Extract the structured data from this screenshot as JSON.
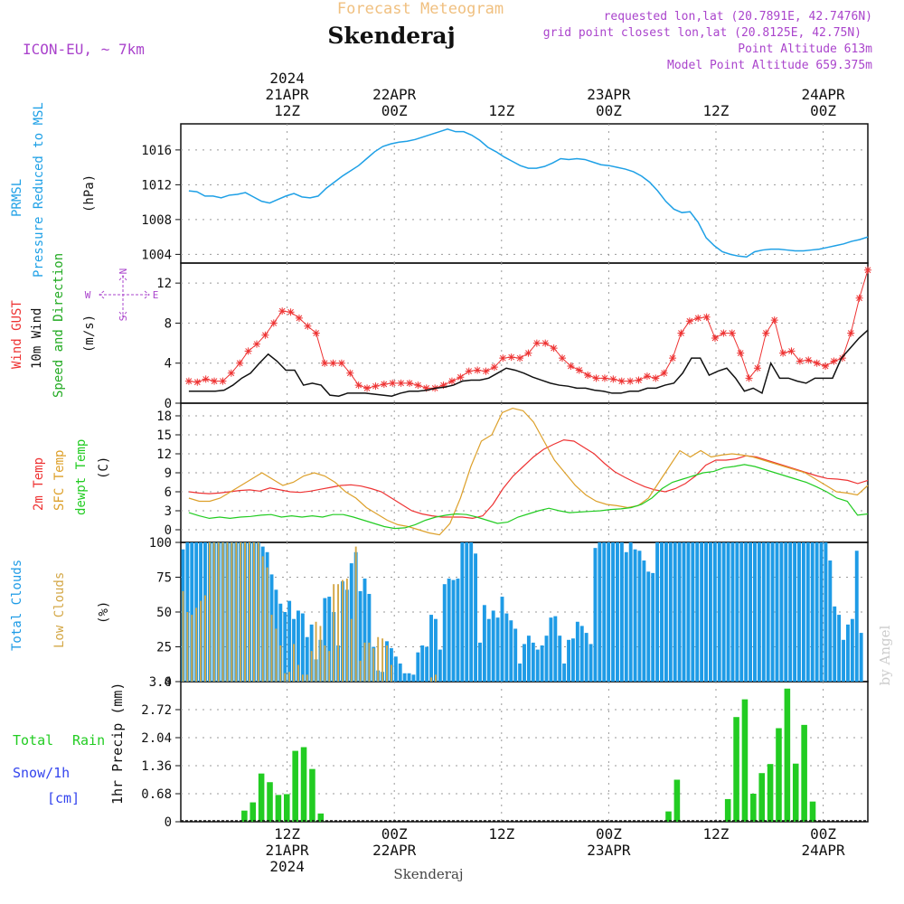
{
  "header": {
    "product_title": "Forecast Meteogram",
    "location": "Skenderaj",
    "model": "ICON-EU, ~ 7km",
    "requested": "requested lon,lat (20.7891E, 42.7476N)",
    "grid_point": "grid point closest lon,lat (20.8125E, 42.75N)",
    "point_altitude": "Point Altitude 613m",
    "model_altitude": "Model Point Altitude 659.375m",
    "watermark": "by Angel",
    "footer_location": "Skenderaj"
  },
  "colors": {
    "pressure": "#1ea0e6",
    "gust": "#ee3333",
    "wind": "#111111",
    "direction": "#22aa22",
    "compass": "#aa44cc",
    "temp2m": "#ee3333",
    "sfc_temp": "#dda02a",
    "dewpoint": "#22cc22",
    "total_clouds": "#1e9be6",
    "low_clouds": "#d4a848",
    "rain": "#22cc22",
    "snow": "#3344ee",
    "title_orange": "#f0c080",
    "purple": "#aa44cc",
    "grid": "#999999"
  },
  "time_axis": {
    "top_labels": [
      {
        "h": 12,
        "lines": [
          "2024",
          "21APR",
          "12Z"
        ]
      },
      {
        "h": 24,
        "lines": [
          "22APR",
          "00Z"
        ]
      },
      {
        "h": 36,
        "lines": [
          "12Z"
        ]
      },
      {
        "h": 48,
        "lines": [
          "23APR",
          "00Z"
        ]
      },
      {
        "h": 60,
        "lines": [
          "12Z"
        ]
      },
      {
        "h": 72,
        "lines": [
          "24APR",
          "00Z"
        ]
      }
    ],
    "bottom_labels": [
      {
        "h": 12,
        "lines": [
          "12Z",
          "21APR",
          "2024"
        ]
      },
      {
        "h": 24,
        "lines": [
          "00Z",
          "22APR"
        ]
      },
      {
        "h": 36,
        "lines": [
          "12Z"
        ]
      },
      {
        "h": 48,
        "lines": [
          "00Z",
          "23APR"
        ]
      },
      {
        "h": 60,
        "lines": [
          "12Z"
        ]
      },
      {
        "h": 72,
        "lines": [
          "00Z",
          "24APR"
        ]
      }
    ]
  },
  "panel_labels": {
    "pressure": {
      "l1": "PRMSL",
      "l2": "Pressure Reduced to MSL",
      "unit": "(hPa)"
    },
    "wind": {
      "l1": "Wind GUST",
      "l2": "10m Wind",
      "l3": "Speed and Direction",
      "unit": "(m/s)"
    },
    "compass": {
      "n": "N",
      "s": "S",
      "w": "W",
      "e": "E"
    },
    "temp": {
      "l1": "2m Temp",
      "l2": "SFC Temp",
      "l3": "dewpt Temp",
      "unit": "(C)"
    },
    "clouds": {
      "l1": "Total Clouds",
      "l2": "Low Clouds",
      "unit": "(%)"
    },
    "precip": {
      "total": "Total",
      "rain": "Rain",
      "snow": "Snow/1h",
      "cm": "[cm]",
      "unit": "1hr Precip (mm)"
    }
  },
  "chart_data": [
    {
      "type": "line",
      "name": "pressure",
      "x_start": "2024-04-21 01Z",
      "x_step_hours": 1,
      "ylim": [
        1003,
        1019
      ],
      "yticks": [
        "1004",
        "1008",
        "1012",
        "1016"
      ],
      "series": [
        {
          "name": "PRMSL",
          "values": [
            1011.3,
            1011.2,
            1010.7,
            1010.7,
            1010.5,
            1010.8,
            1010.9,
            1011.1,
            1010.6,
            1010.1,
            1009.9,
            1010.3,
            1010.7,
            1011.0,
            1010.6,
            1010.5,
            1010.7,
            1011.6,
            1012.3,
            1013.0,
            1013.6,
            1014.2,
            1015.0,
            1015.8,
            1016.4,
            1016.7,
            1016.9,
            1017.0,
            1017.2,
            1017.5,
            1017.8,
            1018.1,
            1018.4,
            1018.1,
            1018.1,
            1017.7,
            1017.1,
            1016.3,
            1015.8,
            1015.2,
            1014.7,
            1014.2,
            1013.9,
            1013.9,
            1014.1,
            1014.5,
            1015.0,
            1014.9,
            1015.0,
            1014.9,
            1014.6,
            1014.3,
            1014.2,
            1014.0,
            1013.8,
            1013.5,
            1013.0,
            1012.3,
            1011.3,
            1010.1,
            1009.2,
            1008.8,
            1008.9,
            1007.7,
            1005.9,
            1005.0,
            1004.3,
            1004.0,
            1003.8,
            1003.7,
            1004.3,
            1004.5,
            1004.6,
            1004.6,
            1004.5,
            1004.4,
            1004.4,
            1004.5,
            1004.6,
            1004.8,
            1005.0,
            1005.2,
            1005.5,
            1005.7,
            1006.0
          ]
        }
      ]
    },
    {
      "type": "line",
      "name": "wind",
      "x_start": "2024-04-21 01Z",
      "x_step_hours": 1,
      "ylim": [
        0,
        14
      ],
      "yticks": [
        "0",
        "4",
        "8",
        "12"
      ],
      "series": [
        {
          "name": "Wind GUST",
          "values": [
            2.2,
            2.1,
            2.4,
            2.2,
            2.2,
            3.0,
            4.0,
            5.2,
            5.9,
            6.8,
            8.0,
            9.2,
            9.1,
            8.5,
            7.7,
            7.0,
            4.0,
            4.0,
            4.0,
            3.0,
            1.8,
            1.5,
            1.7,
            1.9,
            2.0,
            2.0,
            2.0,
            1.8,
            1.5,
            1.5,
            1.8,
            2.2,
            2.6,
            3.2,
            3.3,
            3.2,
            3.6,
            4.5,
            4.6,
            4.5,
            5.0,
            6.0,
            6.0,
            5.5,
            4.5,
            3.7,
            3.3,
            2.8,
            2.5,
            2.5,
            2.4,
            2.2,
            2.2,
            2.3,
            2.7,
            2.5,
            3.0,
            4.5,
            7.0,
            8.2,
            8.5,
            8.6,
            6.5,
            7.0,
            7.0,
            5.0,
            2.5,
            3.5,
            7.0,
            8.3,
            5.0,
            5.2,
            4.2,
            4.3,
            4.0,
            3.7,
            4.2,
            4.5,
            7.0,
            10.5,
            13.3
          ]
        },
        {
          "name": "10m Wind",
          "values": [
            1.2,
            1.2,
            1.2,
            1.2,
            1.3,
            1.8,
            2.5,
            3.0,
            4.0,
            4.9,
            4.2,
            3.3,
            3.3,
            1.8,
            2.0,
            1.8,
            0.8,
            0.7,
            1.0,
            1.0,
            1.0,
            0.9,
            0.8,
            0.7,
            1.0,
            1.2,
            1.2,
            1.3,
            1.5,
            1.6,
            1.8,
            2.2,
            2.3,
            2.3,
            2.5,
            3.0,
            3.5,
            3.3,
            3.0,
            2.6,
            2.3,
            2.0,
            1.8,
            1.7,
            1.5,
            1.5,
            1.3,
            1.2,
            1.0,
            1.0,
            1.2,
            1.2,
            1.5,
            1.5,
            1.8,
            2.0,
            3.0,
            4.5,
            4.5,
            2.8,
            3.2,
            3.5,
            2.5,
            1.2,
            1.5,
            1.0,
            4.0,
            2.5,
            2.5,
            2.2,
            2.0,
            2.5,
            2.5,
            2.5,
            4.5,
            5.5,
            6.5,
            7.3
          ]
        },
        {
          "name": "Speed and Direction",
          "values": []
        }
      ]
    },
    {
      "type": "line",
      "name": "temperature",
      "x_start": "2024-04-21 01Z",
      "x_step_hours": 1,
      "ylim": [
        -2,
        20
      ],
      "yticks": [
        "0",
        "3",
        "6",
        "9",
        "12",
        "15",
        "18"
      ],
      "series": [
        {
          "name": "2m Temp",
          "values": [
            6.0,
            5.8,
            5.7,
            5.8,
            6.0,
            6.2,
            6.3,
            6.1,
            6.6,
            6.3,
            6.0,
            5.9,
            6.1,
            6.4,
            6.7,
            7.0,
            7.1,
            6.9,
            6.5,
            6.0,
            5.0,
            4.0,
            3.0,
            2.5,
            2.2,
            2.0,
            2.0,
            2.0,
            1.8,
            2.2,
            4.0,
            6.5,
            8.5,
            10.0,
            11.5,
            12.7,
            13.5,
            14.2,
            14.0,
            13.0,
            12.0,
            10.5,
            9.2,
            8.3,
            7.5,
            6.8,
            6.3,
            6.0,
            6.5,
            7.3,
            8.5,
            10.2,
            11.0,
            11.0,
            11.2,
            11.7,
            11.5,
            11.0,
            10.5,
            10.0,
            9.5,
            9.0,
            8.5,
            8.1,
            8.0,
            7.8,
            7.3,
            7.8
          ]
        },
        {
          "name": "SFC Temp",
          "values": [
            5.0,
            4.5,
            4.5,
            5.0,
            6.0,
            7.0,
            8.0,
            9.0,
            8.0,
            7.0,
            7.5,
            8.5,
            9.0,
            8.5,
            7.5,
            6.0,
            5.0,
            3.5,
            2.5,
            1.5,
            0.8,
            0.5,
            0.0,
            -0.5,
            -0.8,
            1.0,
            5.0,
            10.0,
            14.0,
            15.0,
            18.5,
            19.2,
            18.8,
            17.0,
            14.0,
            11.0,
            9.0,
            7.0,
            5.5,
            4.5,
            4.0,
            3.8,
            3.5,
            3.8,
            5.0,
            7.5,
            10.0,
            12.5,
            11.5,
            12.5,
            11.5,
            11.8,
            12.0,
            11.8,
            11.5,
            11.0,
            10.5,
            10.0,
            9.5,
            9.0,
            8.0,
            7.0,
            6.0,
            5.8,
            5.5,
            7.0
          ]
        },
        {
          "name": "dewpt Temp",
          "values": [
            2.7,
            2.2,
            1.8,
            2.0,
            1.8,
            2.0,
            2.1,
            2.3,
            2.4,
            2.0,
            2.2,
            2.0,
            2.2,
            2.0,
            2.4,
            2.4,
            2.0,
            1.5,
            1.0,
            0.5,
            0.2,
            0.3,
            0.8,
            1.5,
            2.0,
            2.3,
            2.5,
            2.4,
            2.0,
            1.5,
            1.0,
            1.2,
            2.0,
            2.5,
            3.0,
            3.4,
            3.0,
            2.7,
            2.8,
            2.9,
            3.0,
            3.2,
            3.3,
            3.5,
            4.0,
            5.0,
            6.5,
            7.5,
            8.0,
            8.5,
            9.0,
            9.2,
            9.8,
            10.0,
            10.3,
            10.0,
            9.5,
            9.0,
            8.5,
            8.0,
            7.5,
            6.8,
            6.0,
            5.0,
            4.5,
            2.3,
            2.5
          ]
        }
      ]
    },
    {
      "type": "bar",
      "name": "clouds",
      "x_start": "2024-04-21 01Z",
      "x_step_hours": 1,
      "ylim": [
        0,
        100
      ],
      "yticks": [
        "0",
        "25",
        "50",
        "75",
        "100"
      ],
      "series": [
        {
          "name": "Total Clouds",
          "values": [
            95,
            100,
            100,
            100,
            100,
            100,
            100,
            100,
            100,
            100,
            100,
            100,
            100,
            100,
            100,
            100,
            100,
            100,
            97,
            93,
            77,
            66,
            56,
            50,
            58,
            45,
            51,
            49,
            32,
            41,
            16,
            30,
            60,
            61,
            50,
            26,
            72,
            66,
            85,
            93,
            65,
            74,
            63,
            25,
            8,
            7,
            29,
            24,
            18,
            13,
            6,
            6,
            5,
            21,
            26,
            25,
            48,
            45,
            23,
            70,
            74,
            73,
            74,
            100,
            100,
            100,
            92,
            28,
            55,
            45,
            51,
            46,
            61,
            49,
            44,
            38,
            13,
            27,
            33,
            28,
            23,
            26,
            33,
            46,
            47,
            33,
            13,
            30,
            31,
            43,
            40,
            35,
            27,
            96,
            100,
            100,
            100,
            100,
            100,
            100,
            93,
            100,
            95,
            94,
            87,
            79,
            78,
            100,
            100,
            100,
            100,
            100,
            100,
            100,
            100,
            100,
            100,
            100,
            100,
            100,
            100,
            100,
            100,
            100,
            100,
            100,
            100,
            100,
            100,
            100,
            100,
            100,
            100,
            100,
            100,
            100,
            100,
            100,
            100,
            100,
            100,
            100,
            100,
            100,
            100,
            100,
            87,
            54,
            48,
            30,
            41,
            45,
            94,
            35,
            0
          ]
        },
        {
          "name": "Low Clouds",
          "values": [
            65,
            50,
            48,
            53,
            58,
            62,
            100,
            100,
            100,
            100,
            100,
            100,
            100,
            100,
            100,
            100,
            100,
            100,
            90,
            82,
            48,
            38,
            26,
            6,
            7,
            27,
            12,
            5,
            5,
            22,
            43,
            40,
            26,
            22,
            70,
            70,
            73,
            74,
            45,
            97,
            15,
            28,
            28,
            24,
            32,
            31,
            26,
            12,
            0,
            0,
            0,
            0,
            0,
            0,
            0,
            0,
            3,
            5,
            0,
            0,
            0,
            0,
            0,
            0,
            0,
            0,
            0,
            0,
            0,
            0,
            0,
            0,
            0,
            0,
            0,
            0,
            0,
            0,
            0,
            0,
            0,
            0,
            0,
            0,
            0,
            0,
            0,
            0,
            0,
            0,
            0,
            0,
            0,
            0,
            0,
            0,
            0,
            0,
            0,
            0,
            0,
            0,
            0,
            0,
            0,
            0,
            0,
            0,
            0,
            0,
            0,
            0,
            0,
            0,
            0,
            0,
            0,
            0,
            0,
            0,
            0,
            0,
            0,
            0,
            0,
            0,
            0,
            0,
            0,
            0,
            0,
            0,
            0,
            0,
            0,
            0,
            0,
            0,
            0,
            0,
            0,
            0,
            0,
            0,
            0,
            0,
            0,
            0,
            0,
            0,
            0,
            0,
            0,
            0,
            0,
            0,
            0
          ]
        }
      ]
    },
    {
      "type": "bar",
      "name": "precip",
      "x_start": "2024-04-21 01Z",
      "x_step_hours": 1,
      "ylim": [
        0,
        3.4
      ],
      "yticks": [
        "0",
        "0.68",
        "1.36",
        "2.04",
        "2.72",
        "3.4"
      ],
      "series": [
        {
          "name": "Total Rain",
          "values": [
            0,
            0,
            0,
            0,
            0,
            0,
            0,
            0.27,
            0.47,
            1.17,
            0.96,
            0.65,
            0.67,
            1.72,
            1.81,
            1.28,
            0.2,
            0,
            0,
            0,
            0,
            0,
            0,
            0,
            0,
            0,
            0,
            0,
            0,
            0,
            0,
            0,
            0,
            0,
            0,
            0,
            0,
            0,
            0,
            0,
            0,
            0,
            0,
            0,
            0,
            0,
            0,
            0,
            0,
            0,
            0,
            0,
            0,
            0,
            0,
            0,
            0,
            0.25,
            1.02,
            0,
            0,
            0,
            0,
            0,
            0.55,
            2.54,
            2.97,
            0.68,
            1.18,
            1.4,
            2.27,
            3.23,
            1.41,
            2.35,
            0.49,
            0,
            0,
            0,
            0,
            0,
            0
          ]
        },
        {
          "name": "Snow/1h",
          "values": []
        }
      ]
    }
  ]
}
